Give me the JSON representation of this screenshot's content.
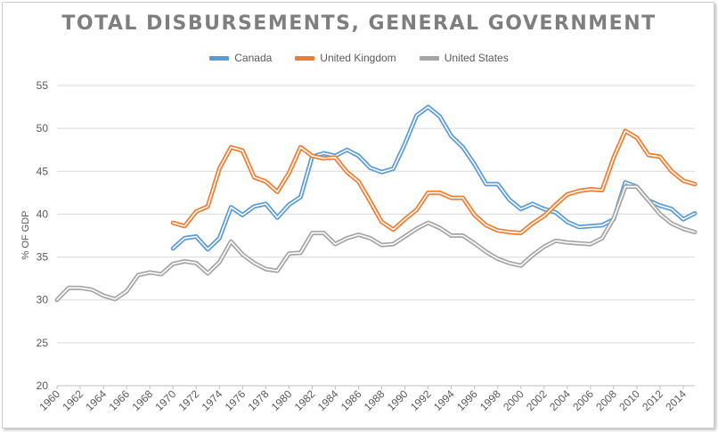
{
  "chart_data": {
    "type": "line",
    "title": "TOTAL DISBURSEMENTS, GENERAL GOVERNMENT",
    "xlabel": "",
    "ylabel": "% OF GDP",
    "ylim": [
      20,
      55
    ],
    "yticks": [
      20,
      25,
      30,
      35,
      40,
      45,
      50,
      55
    ],
    "xlim": [
      1960,
      2015
    ],
    "xticks": [
      1960,
      1962,
      1964,
      1966,
      1968,
      1970,
      1972,
      1974,
      1976,
      1978,
      1980,
      1982,
      1984,
      1986,
      1988,
      1990,
      1992,
      1994,
      1996,
      1998,
      2000,
      2002,
      2004,
      2006,
      2008,
      2010,
      2012,
      2014
    ],
    "grid": "horizontal",
    "legend_position": "top",
    "series": [
      {
        "name": "Canada",
        "color": "#5b9bd5",
        "x": [
          1970,
          1971,
          1972,
          1973,
          1974,
          1975,
          1976,
          1977,
          1978,
          1979,
          1980,
          1981,
          1982,
          1983,
          1984,
          1985,
          1986,
          1987,
          1988,
          1989,
          1990,
          1991,
          1992,
          1993,
          1994,
          1995,
          1996,
          1997,
          1998,
          1999,
          2000,
          2001,
          2002,
          2003,
          2004,
          2005,
          2006,
          2007,
          2008,
          2009,
          2010,
          2011,
          2012,
          2013,
          2014,
          2015
        ],
        "values": [
          36.0,
          37.2,
          37.4,
          35.9,
          37.2,
          40.8,
          39.9,
          40.9,
          41.2,
          39.6,
          41.1,
          42.0,
          46.7,
          47.1,
          46.8,
          47.5,
          46.8,
          45.4,
          44.9,
          45.3,
          48.2,
          51.5,
          52.5,
          51.4,
          49.1,
          47.8,
          45.8,
          43.5,
          43.5,
          41.7,
          40.6,
          41.2,
          40.6,
          40.2,
          39.1,
          38.5,
          38.6,
          38.7,
          39.4,
          43.7,
          43.2,
          41.6,
          41.0,
          40.6,
          39.4,
          40.1
        ]
      },
      {
        "name": "United Kingdom",
        "color": "#ed7d31",
        "x": [
          1970,
          1971,
          1972,
          1973,
          1974,
          1975,
          1976,
          1977,
          1978,
          1979,
          1980,
          1981,
          1982,
          1983,
          1984,
          1985,
          1986,
          1987,
          1988,
          1989,
          1990,
          1991,
          1992,
          1993,
          1994,
          1995,
          1996,
          1997,
          1998,
          1999,
          2000,
          2001,
          2002,
          2003,
          2004,
          2005,
          2006,
          2007,
          2008,
          2009,
          2010,
          2011,
          2012,
          2013,
          2014,
          2015
        ],
        "values": [
          39.0,
          38.6,
          40.3,
          40.9,
          45.3,
          47.8,
          47.4,
          44.3,
          43.8,
          42.6,
          44.8,
          47.8,
          46.8,
          46.5,
          46.6,
          44.9,
          43.8,
          41.5,
          39.1,
          38.2,
          39.4,
          40.5,
          42.5,
          42.5,
          41.9,
          41.9,
          39.9,
          38.7,
          38.1,
          37.9,
          37.8,
          38.9,
          39.8,
          41.1,
          42.3,
          42.7,
          42.9,
          42.8,
          46.6,
          49.7,
          48.9,
          46.9,
          46.7,
          45.0,
          43.9,
          43.5
        ]
      },
      {
        "name": "United States",
        "color": "#a5a5a5",
        "x": [
          1960,
          1961,
          1962,
          1963,
          1964,
          1965,
          1966,
          1967,
          1968,
          1969,
          1970,
          1971,
          1972,
          1973,
          1974,
          1975,
          1976,
          1977,
          1978,
          1979,
          1980,
          1981,
          1982,
          1983,
          1984,
          1985,
          1986,
          1987,
          1988,
          1989,
          1990,
          1991,
          1992,
          1993,
          1994,
          1995,
          1996,
          1997,
          1998,
          1999,
          2000,
          2001,
          2002,
          2003,
          2004,
          2005,
          2006,
          2007,
          2008,
          2009,
          2010,
          2011,
          2012,
          2013,
          2014,
          2015
        ],
        "values": [
          30.0,
          31.4,
          31.4,
          31.2,
          30.5,
          30.1,
          31.0,
          32.9,
          33.2,
          33.0,
          34.2,
          34.5,
          34.3,
          33.1,
          34.4,
          36.8,
          35.3,
          34.3,
          33.6,
          33.4,
          35.4,
          35.5,
          37.8,
          37.8,
          36.5,
          37.2,
          37.6,
          37.2,
          36.4,
          36.5,
          37.4,
          38.3,
          39.0,
          38.4,
          37.5,
          37.5,
          36.6,
          35.6,
          34.8,
          34.3,
          34.0,
          35.2,
          36.2,
          36.9,
          36.7,
          36.6,
          36.5,
          37.2,
          39.5,
          43.2,
          43.2,
          41.6,
          40.0,
          38.9,
          38.3,
          37.9
        ]
      }
    ]
  }
}
